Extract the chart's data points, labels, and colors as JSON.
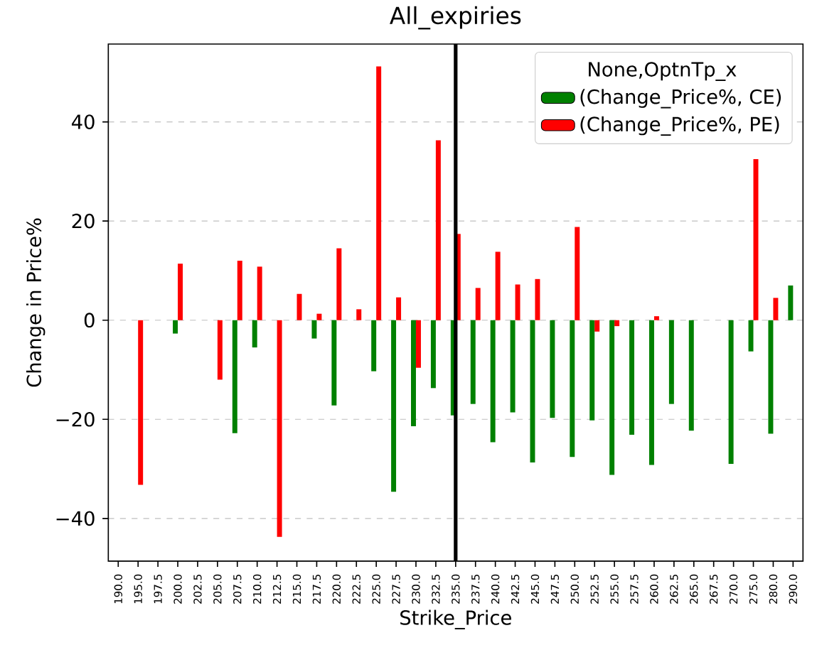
{
  "chart_data": {
    "type": "bar",
    "title": "All_expiries",
    "xlabel": "Strike_Price",
    "ylabel": "Change in Price%",
    "legend_title": "None,OptnTp_x",
    "categories": [
      "190.0",
      "195.0",
      "197.5",
      "200.0",
      "202.5",
      "205.0",
      "207.5",
      "210.0",
      "212.5",
      "215.0",
      "217.5",
      "220.0",
      "222.5",
      "225.0",
      "227.5",
      "230.0",
      "232.5",
      "235.0",
      "237.5",
      "240.0",
      "242.5",
      "245.0",
      "247.5",
      "250.0",
      "252.5",
      "255.0",
      "257.5",
      "260.0",
      "262.5",
      "265.0",
      "267.5",
      "270.0",
      "275.0",
      "280.0",
      "290.0"
    ],
    "series": [
      {
        "name": "(Change_Price%, CE)",
        "color": "#008000",
        "values": [
          null,
          null,
          null,
          -2.7,
          null,
          null,
          -22.8,
          -5.5,
          null,
          null,
          -3.7,
          -17.2,
          null,
          -10.3,
          -34.6,
          -21.4,
          -13.7,
          -19.2,
          -16.9,
          -24.6,
          -18.6,
          -28.7,
          -19.7,
          -27.6,
          -20.2,
          -31.2,
          -23.1,
          -29.2,
          -16.9,
          -22.3,
          null,
          -29.0,
          -6.3,
          -22.9,
          7.0
        ]
      },
      {
        "name": "(Change_Price%, PE)",
        "color": "#ff0000",
        "values": [
          null,
          -33.2,
          null,
          11.4,
          null,
          -12.0,
          12.0,
          10.8,
          -43.7,
          5.3,
          1.3,
          14.5,
          2.2,
          51.2,
          4.6,
          -9.6,
          36.3,
          17.4,
          6.5,
          13.8,
          7.2,
          8.3,
          null,
          18.8,
          -2.3,
          -1.2,
          null,
          0.8,
          null,
          null,
          null,
          null,
          32.5,
          4.5,
          null
        ]
      }
    ],
    "ylim": [
      -48.6,
      55.7
    ],
    "yticks": [
      {
        "value": -40,
        "label": "−40"
      },
      {
        "value": -20,
        "label": "−20"
      },
      0,
      20,
      40
    ],
    "ref_lines": [
      {
        "axis": "x",
        "value": "235.0",
        "color": "#000000"
      }
    ],
    "grid": "y",
    "legend": "top right"
  }
}
